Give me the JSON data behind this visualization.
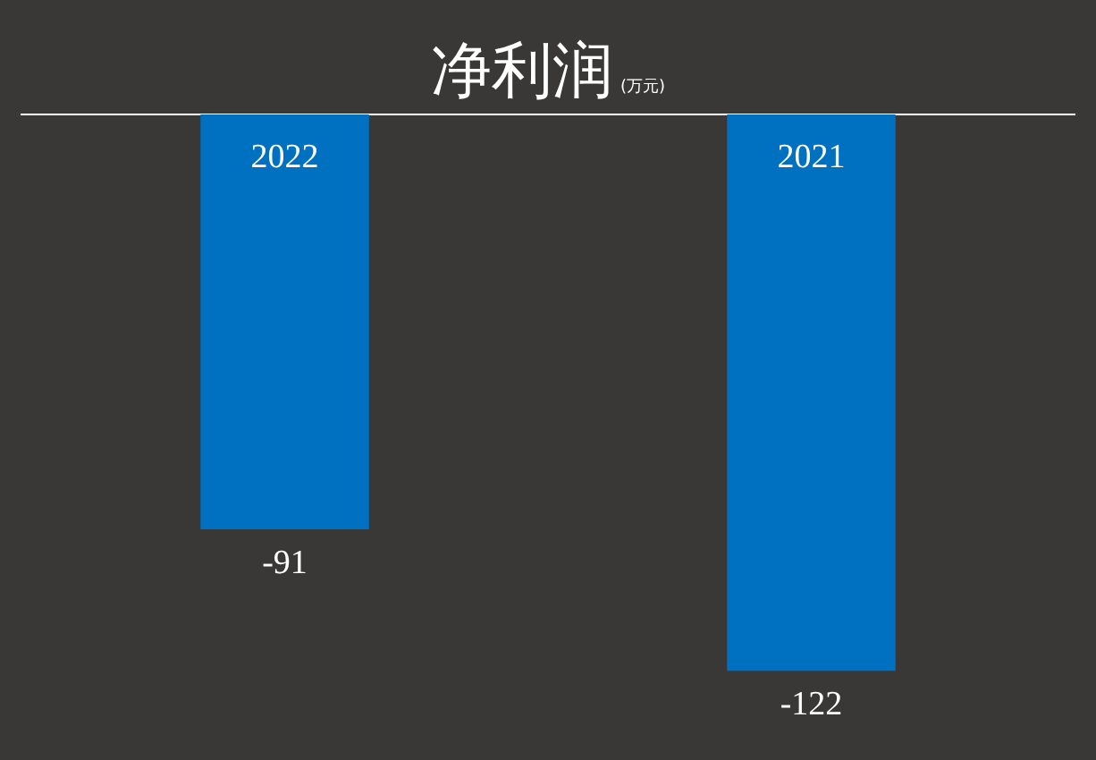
{
  "chart_data": {
    "type": "bar",
    "title": "净利润",
    "subtitle": "(万元)",
    "categories": [
      "2022",
      "2021"
    ],
    "values": [
      -91,
      -122
    ],
    "color": "#0070c0",
    "data_labels": true,
    "grid": false,
    "legend": false
  }
}
